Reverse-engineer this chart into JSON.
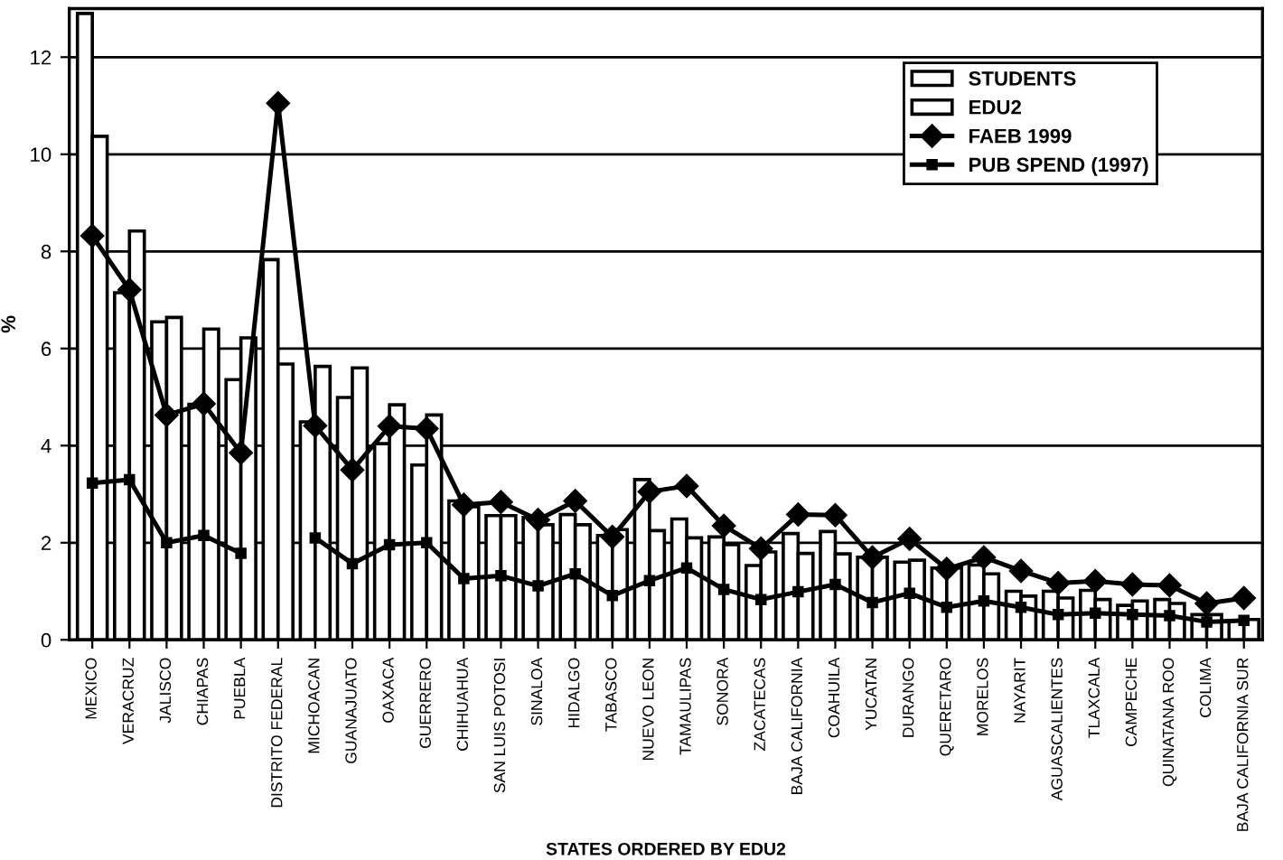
{
  "chart_data": {
    "type": "bar",
    "xlabel": "STATES ORDERED BY EDU2",
    "ylabel": "%",
    "categories": [
      "MEXICO",
      "VERACRUZ",
      "JALISCO",
      "CHIAPAS",
      "PUEBLA",
      "DISTRITO FEDERAL",
      "MICHOACAN",
      "GUANAJUATO",
      "OAXACA",
      "GUERRERO",
      "CHIHUAHUA",
      "SAN LUIS POTOSI",
      "SINALOA",
      "HIDALGO",
      "TABASCO",
      "NUEVO LEON",
      "TAMAULIPAS",
      "SONORA",
      "ZACATECAS",
      "BAJA CALIFORNIA",
      "COAHUILA",
      "YUCATAN",
      "DURANGO",
      "QUERETARO",
      "MORELOS",
      "NAYARIT",
      "AGUASCALIENTES",
      "TLAXCALA",
      "CAMPECHE",
      "QUINATANA ROO",
      "COLIMA",
      "BAJA CALIFORNIA SUR"
    ],
    "series": [
      {
        "name": "STUDENTS",
        "color": "#ffffff",
        "values": [
          12.9,
          7.15,
          6.55,
          4.85,
          5.36,
          7.83,
          4.49,
          4.99,
          4.04,
          3.6,
          2.86,
          2.56,
          2.52,
          2.58,
          2.15,
          3.3,
          2.49,
          2.12,
          1.53,
          2.19,
          2.23,
          1.7,
          1.6,
          1.48,
          1.54,
          1.0,
          1.0,
          1.02,
          0.71,
          0.83,
          0.52,
          0.4
        ]
      },
      {
        "name": "EDU2",
        "color": "#ffffff",
        "values": [
          10.37,
          8.42,
          6.64,
          6.4,
          6.22,
          5.68,
          5.63,
          5.6,
          4.84,
          4.63,
          2.74,
          2.56,
          2.37,
          2.37,
          2.27,
          2.25,
          2.1,
          1.96,
          1.81,
          1.78,
          1.77,
          1.7,
          1.64,
          1.48,
          1.36,
          0.9,
          0.86,
          0.83,
          0.8,
          0.75,
          0.52,
          0.42
        ]
      },
      {
        "name": "FAEB 1999",
        "type": "line",
        "marker": "diamond",
        "color": "#000000",
        "values": [
          8.32,
          7.21,
          4.63,
          4.86,
          3.85,
          11.05,
          4.41,
          3.5,
          4.4,
          4.35,
          2.78,
          2.84,
          2.47,
          2.86,
          2.12,
          3.05,
          3.17,
          2.35,
          1.88,
          2.58,
          2.57,
          1.7,
          2.08,
          1.46,
          1.7,
          1.42,
          1.17,
          1.21,
          1.14,
          1.12,
          0.75,
          0.86
        ]
      },
      {
        "name": "PUB SPEND (1997)",
        "type": "line",
        "marker": "square",
        "color": "#000000",
        "values": [
          3.23,
          3.3,
          2.0,
          2.15,
          1.78,
          null,
          2.1,
          1.57,
          1.96,
          2.0,
          1.26,
          1.32,
          1.11,
          1.36,
          0.91,
          1.22,
          1.48,
          1.04,
          0.83,
          0.99,
          1.14,
          0.77,
          0.96,
          0.67,
          0.8,
          0.67,
          0.52,
          0.55,
          0.52,
          0.5,
          0.37,
          0.4
        ]
      }
    ],
    "ylim": [
      0,
      13
    ],
    "yticks": [
      0,
      2,
      4,
      6,
      8,
      10,
      12
    ],
    "grid": "y",
    "legend": "top right",
    "line_style": "solid"
  }
}
